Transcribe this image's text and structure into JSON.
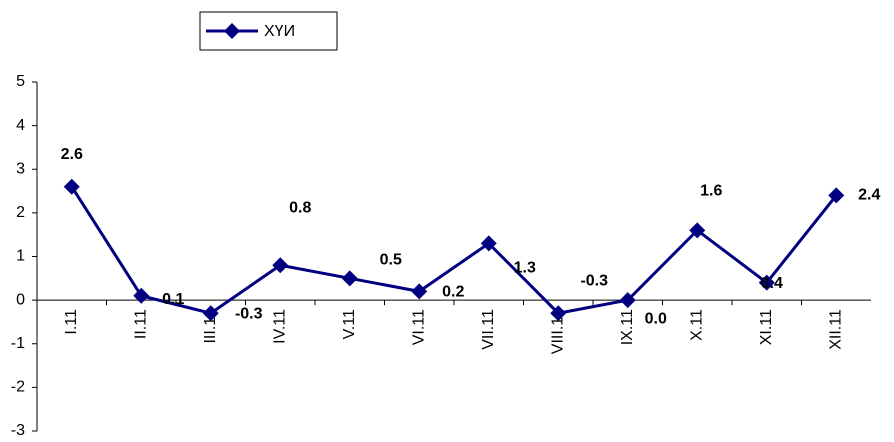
{
  "chart_data": {
    "type": "line",
    "categories": [
      "I.11",
      "II.11",
      "III.11",
      "IV.11",
      "V.11",
      "VI.11",
      "VII.11",
      "VIII.11",
      "IX.11",
      "X.11",
      "XI.11",
      "XII.11"
    ],
    "series": [
      {
        "name": "ХҮИ",
        "color": "#000080",
        "values": [
          2.6,
          0.1,
          -0.3,
          0.8,
          0.5,
          0.2,
          1.3,
          -0.3,
          0.0,
          1.6,
          0.4,
          2.4
        ],
        "value_labels": [
          "2.6",
          "0.1",
          "-0.3",
          "0.8",
          "0.5",
          "0.2",
          "1.3",
          "-0.3",
          "0.0",
          "1.6",
          "0.4",
          "2.4"
        ]
      }
    ],
    "ylim": [
      -3,
      5
    ],
    "yticks": [
      -3,
      -2,
      -1,
      0,
      1,
      2,
      3,
      4,
      5
    ],
    "grid": false,
    "legend": "top"
  }
}
